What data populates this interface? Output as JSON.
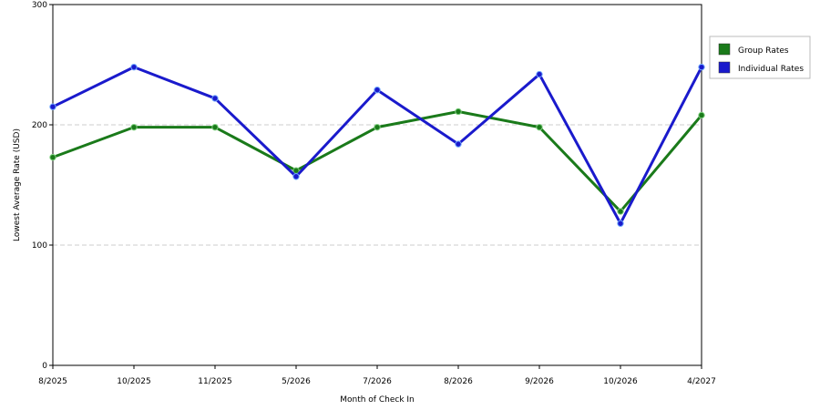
{
  "chart_data": {
    "type": "line",
    "title": "",
    "xlabel": "Month of Check In",
    "ylabel": "Lowest Average Rate (USD)",
    "categories": [
      "8/2025",
      "10/2025",
      "11/2025",
      "5/2026",
      "7/2026",
      "8/2026",
      "9/2026",
      "10/2026",
      "4/2027"
    ],
    "ylim": [
      0,
      300
    ],
    "yticks": [
      0,
      100,
      200,
      300
    ],
    "grid": true,
    "legend_position": "top-right",
    "series": [
      {
        "name": "Group Rates",
        "color": "#1a7a1a",
        "values": [
          173,
          198,
          198,
          162,
          198,
          211,
          198,
          128,
          208
        ]
      },
      {
        "name": "Individual Rates",
        "color": "#1a1acc",
        "values": [
          215,
          248,
          222,
          157,
          229,
          184,
          242,
          118,
          248
        ]
      }
    ]
  }
}
